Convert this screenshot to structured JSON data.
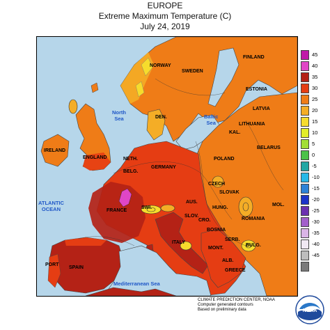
{
  "title": {
    "line1": "EUROPE",
    "line2": "Extreme Maximum Temperature (C)",
    "line3": "July 24, 2019"
  },
  "legend": {
    "levels": [
      {
        "label": "45",
        "color": "#c01aa8"
      },
      {
        "label": "40",
        "color": "#e046c6"
      },
      {
        "label": "35",
        "color": "#b42216"
      },
      {
        "label": "30",
        "color": "#e53d13"
      },
      {
        "label": "25",
        "color": "#ef7c17"
      },
      {
        "label": "20",
        "color": "#f4ad26"
      },
      {
        "label": "15",
        "color": "#f6dc2c"
      },
      {
        "label": "10",
        "color": "#e2ee28"
      },
      {
        "label": "5",
        "color": "#a2de35"
      },
      {
        "label": "0",
        "color": "#4bc249"
      },
      {
        "label": "-5",
        "color": "#24a7a4"
      },
      {
        "label": "-10",
        "color": "#27b8e7"
      },
      {
        "label": "-15",
        "color": "#2d82d7"
      },
      {
        "label": "-20",
        "color": "#1c33c8"
      },
      {
        "label": "-25",
        "color": "#6b2fb0"
      },
      {
        "label": "-30",
        "color": "#a25fcb"
      },
      {
        "label": "-35",
        "color": "#dab4e6"
      },
      {
        "label": "-40",
        "color": "#f0e8f3"
      },
      {
        "label": "-45",
        "color": "#bdbdbd"
      },
      {
        "label": "",
        "color": "#7a7a7a"
      }
    ]
  },
  "countries": [
    {
      "key": "norway",
      "label": "NORWAY"
    },
    {
      "key": "sweden",
      "label": "SWEDEN"
    },
    {
      "key": "finland",
      "label": "FINLAND"
    },
    {
      "key": "estonia",
      "label": "ESTONIA"
    },
    {
      "key": "latvia",
      "label": "LATVIA"
    },
    {
      "key": "lithuania",
      "label": "LITHUANIA"
    },
    {
      "key": "kal",
      "label": "KAL."
    },
    {
      "key": "belarus",
      "label": "BELARUS"
    },
    {
      "key": "den",
      "label": "DEN."
    },
    {
      "key": "ireland",
      "label": "IRELAND"
    },
    {
      "key": "england",
      "label": "ENGLAND"
    },
    {
      "key": "neth",
      "label": "NETH."
    },
    {
      "key": "belg",
      "label": "BELG."
    },
    {
      "key": "germany",
      "label": "GERMANY"
    },
    {
      "key": "poland",
      "label": "POLAND"
    },
    {
      "key": "czech",
      "label": "CZECH"
    },
    {
      "key": "slovak",
      "label": "SLOVAK"
    },
    {
      "key": "aus",
      "label": "AUS."
    },
    {
      "key": "hung",
      "label": "HUNG."
    },
    {
      "key": "mol",
      "label": "MOL."
    },
    {
      "key": "romania",
      "label": "ROMANIA"
    },
    {
      "key": "france",
      "label": "FRANCE"
    },
    {
      "key": "swi",
      "label": "SWI."
    },
    {
      "key": "slov",
      "label": "SLOV."
    },
    {
      "key": "cro",
      "label": "CRO."
    },
    {
      "key": "bosnia",
      "label": "BOSNIA"
    },
    {
      "key": "serb",
      "label": "SERB."
    },
    {
      "key": "bulg",
      "label": "BULG."
    },
    {
      "key": "mont",
      "label": "MONT."
    },
    {
      "key": "alb",
      "label": "ALB."
    },
    {
      "key": "greece",
      "label": "GREECE"
    },
    {
      "key": "italy",
      "label": "ITALY"
    },
    {
      "key": "spain",
      "label": "SPAIN"
    },
    {
      "key": "port",
      "label": "PORT"
    }
  ],
  "seas": [
    {
      "key": "north_sea",
      "label_1": "North",
      "label_2": "Sea"
    },
    {
      "key": "baltic_sea",
      "label_1": "Baltic",
      "label_2": "Sea"
    },
    {
      "key": "atlantic",
      "label_1": "ATLANTIC",
      "label_2": "OCEAN"
    },
    {
      "key": "med",
      "label_1": "Mediterranean Sea",
      "label_2": ""
    }
  ],
  "credit": {
    "line1": "CLIMATE PREDICTION CENTER, NOAA",
    "line2": "Computer generated contours",
    "line3": "Based on preliminary data"
  },
  "logo": {
    "text": "NOAA"
  }
}
